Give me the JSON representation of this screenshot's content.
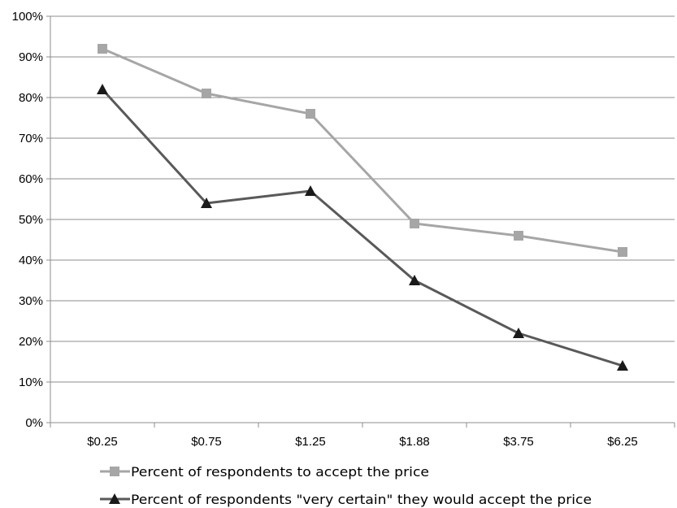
{
  "chart_data": {
    "type": "line",
    "categories": [
      "$0.25",
      "$0.75",
      "$1.25",
      "$1.88",
      "$3.75",
      "$6.25"
    ],
    "series": [
      {
        "name": "Percent of respondents to accept the price",
        "values": [
          92,
          81,
          76,
          49,
          46,
          42
        ],
        "color": "#a6a6a6",
        "marker": "square"
      },
      {
        "name": "Percent of respondents \"very certain\" they would accept the price",
        "values": [
          82,
          54,
          57,
          35,
          22,
          14
        ],
        "color": "#595959",
        "marker": "triangle"
      }
    ],
    "ylim": [
      0,
      100
    ],
    "yticks": [
      "0%",
      "10%",
      "20%",
      "30%",
      "40%",
      "50%",
      "60%",
      "70%",
      "80%",
      "90%",
      "100%"
    ],
    "grid": true,
    "legend_position": "bottom",
    "title": "",
    "xlabel": "",
    "ylabel": ""
  }
}
